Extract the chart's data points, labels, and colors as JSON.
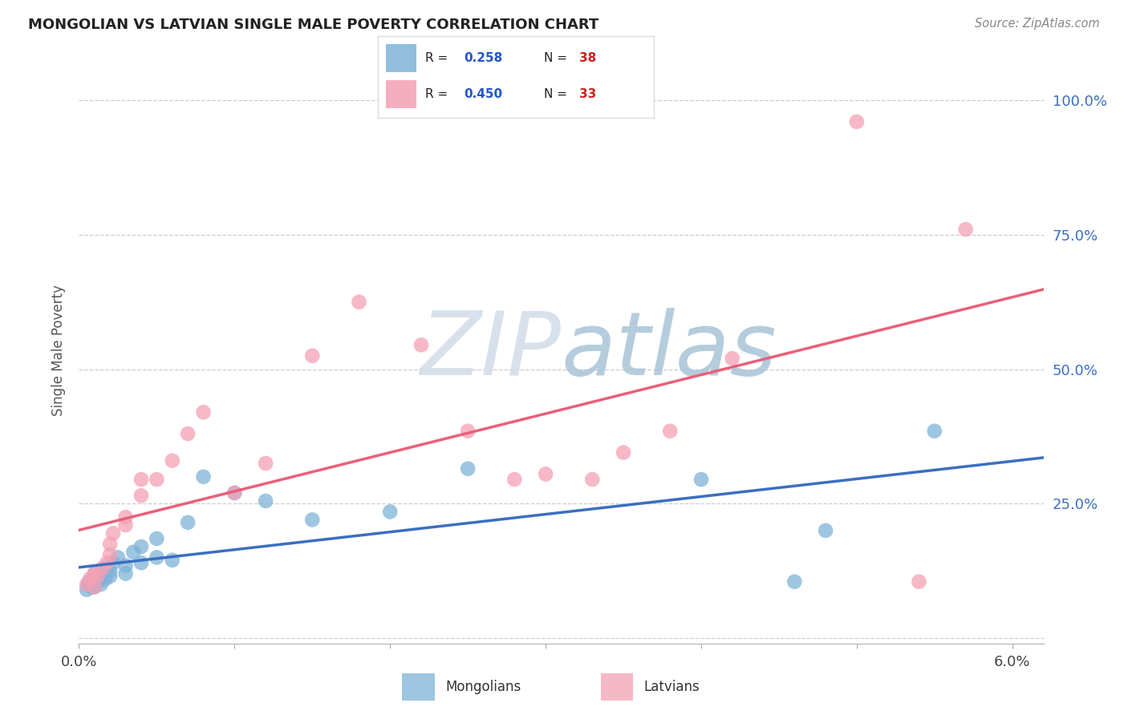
{
  "title": "MONGOLIAN VS LATVIAN SINGLE MALE POVERTY CORRELATION CHART",
  "source": "Source: ZipAtlas.com",
  "ylabel": "Single Male Poverty",
  "xlim": [
    0.0,
    0.062
  ],
  "ylim": [
    -0.01,
    1.08
  ],
  "xtick_positions": [
    0.0,
    0.01,
    0.02,
    0.03,
    0.04,
    0.05,
    0.06
  ],
  "xtick_labels": [
    "0.0%",
    "",
    "",
    "",
    "",
    "",
    "6.0%"
  ],
  "ytick_positions": [
    0.0,
    0.25,
    0.5,
    0.75,
    1.0
  ],
  "ytick_labels_right": [
    "",
    "25.0%",
    "50.0%",
    "75.0%",
    "100.0%"
  ],
  "mongolian_color": "#7EB3D8",
  "latvian_color": "#F4A0B5",
  "mongolian_line_color": "#3B6FBF",
  "latvian_line_color": "#E8607A",
  "mongolian_R": 0.258,
  "mongolian_N": 38,
  "latvian_R": 0.45,
  "latvian_N": 33,
  "legend_R_color": "#2255CC",
  "legend_N_color": "#CC2222",
  "watermark_zip": "ZIP",
  "watermark_atlas": "atlas",
  "watermark_color_zip": "#D0D8E8",
  "watermark_color_atlas": "#A8C4D8",
  "grid_color": "#CCCCCC",
  "background_color": "#FFFFFF",
  "mongolian_x": [
    0.0005,
    0.0006,
    0.0007,
    0.0008,
    0.0009,
    0.001,
    0.001,
    0.001,
    0.0012,
    0.0013,
    0.0014,
    0.0015,
    0.0016,
    0.0017,
    0.0018,
    0.002,
    0.002,
    0.0022,
    0.0025,
    0.003,
    0.003,
    0.0035,
    0.004,
    0.004,
    0.005,
    0.005,
    0.006,
    0.007,
    0.008,
    0.01,
    0.012,
    0.015,
    0.02,
    0.025,
    0.04,
    0.046,
    0.048,
    0.055
  ],
  "mongolian_y": [
    0.09,
    0.1,
    0.105,
    0.095,
    0.1,
    0.11,
    0.12,
    0.095,
    0.105,
    0.11,
    0.1,
    0.115,
    0.12,
    0.11,
    0.13,
    0.115,
    0.125,
    0.14,
    0.15,
    0.12,
    0.135,
    0.16,
    0.14,
    0.17,
    0.15,
    0.185,
    0.145,
    0.215,
    0.3,
    0.27,
    0.255,
    0.22,
    0.235,
    0.315,
    0.295,
    0.105,
    0.2,
    0.385
  ],
  "latvian_x": [
    0.0005,
    0.0007,
    0.001,
    0.001,
    0.0012,
    0.0015,
    0.0018,
    0.002,
    0.002,
    0.0022,
    0.003,
    0.003,
    0.004,
    0.004,
    0.005,
    0.006,
    0.007,
    0.008,
    0.01,
    0.012,
    0.015,
    0.018,
    0.022,
    0.025,
    0.028,
    0.03,
    0.033,
    0.035,
    0.038,
    0.042,
    0.05,
    0.054,
    0.057
  ],
  "latvian_y": [
    0.1,
    0.11,
    0.12,
    0.095,
    0.115,
    0.13,
    0.14,
    0.155,
    0.175,
    0.195,
    0.21,
    0.225,
    0.265,
    0.295,
    0.295,
    0.33,
    0.38,
    0.42,
    0.27,
    0.325,
    0.525,
    0.625,
    0.545,
    0.385,
    0.295,
    0.305,
    0.295,
    0.345,
    0.385,
    0.52,
    0.96,
    0.105,
    0.76
  ]
}
